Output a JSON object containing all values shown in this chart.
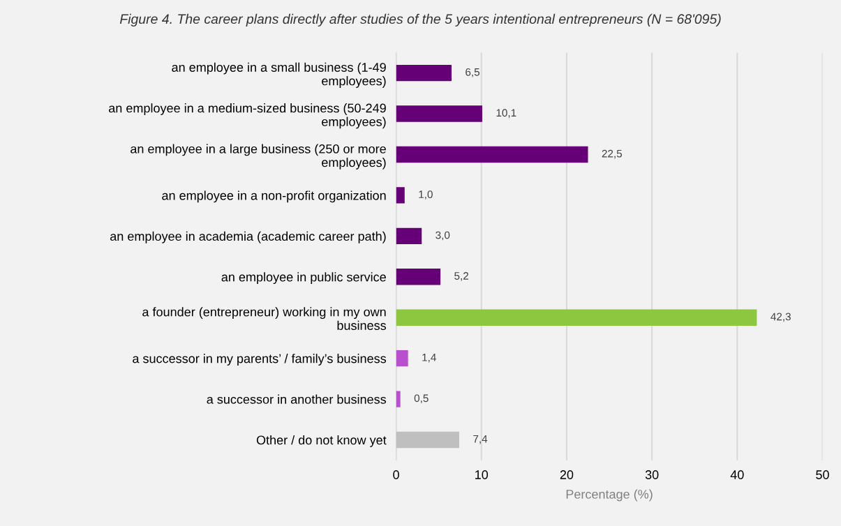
{
  "chart_data": {
    "type": "bar",
    "orientation": "horizontal",
    "title": "Figure 4. The career plans directly after studies of the 5 years intentional entrepreneurs (N = 68'095)",
    "xlabel": "Percentage (%)",
    "categories": [
      "an employee in a small business (1-49 employees)",
      "an employee in a medium-sized business (50-249 employees)",
      "an employee in a large business (250 or more employees)",
      "an employee in a non-profit organization",
      "an employee in academia (academic career path)",
      "an employee in public service",
      "a founder (entrepreneur) working in my own business",
      "a successor in my parents’ / family’s business",
      "a successor in another business",
      "Other / do not know yet"
    ],
    "values": [
      6.5,
      10.1,
      22.5,
      1.0,
      3.0,
      5.2,
      42.3,
      1.4,
      0.5,
      7.4
    ],
    "value_labels": [
      "6,5",
      "10,1",
      "22,5",
      "1,0",
      "3,0",
      "5,2",
      "42,3",
      "1,4",
      "0,5",
      "7,4"
    ],
    "colors": [
      "#660077",
      "#660077",
      "#660077",
      "#660077",
      "#660077",
      "#660077",
      "#8dc63f",
      "#b84fcc",
      "#b84fcc",
      "#bfbfbf"
    ],
    "xlim": [
      0,
      50
    ],
    "xticks": [
      0,
      10,
      20,
      30,
      40,
      50
    ],
    "grid": "x",
    "legend": false
  }
}
